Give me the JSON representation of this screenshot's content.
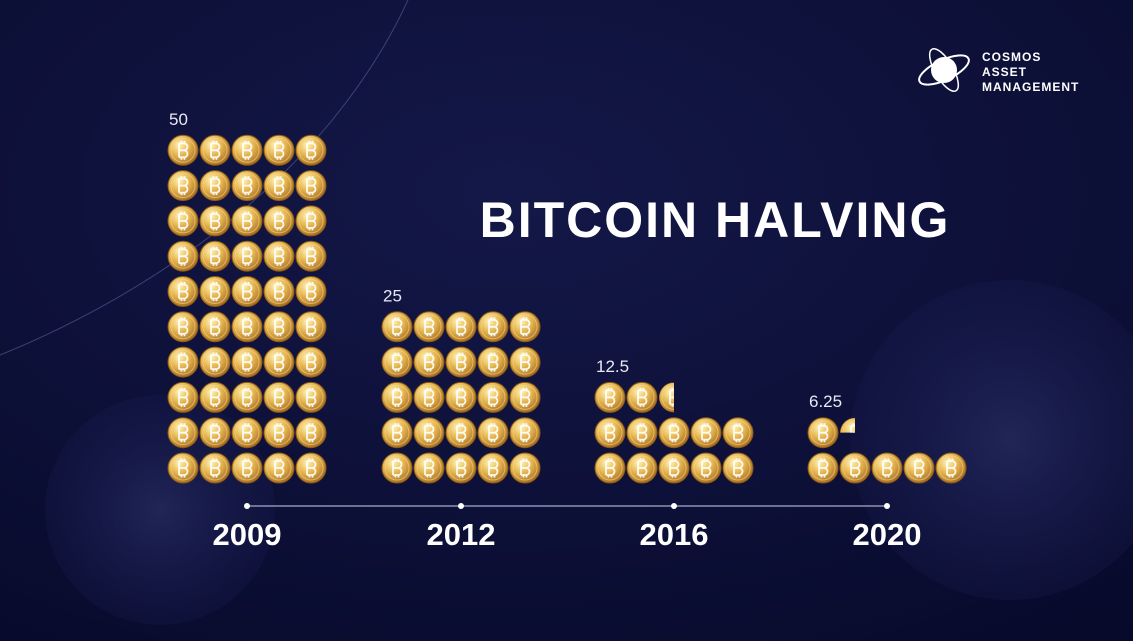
{
  "chart_data": {
    "type": "pictograph",
    "title": "BITCOIN HALVING",
    "categories": [
      "2009",
      "2012",
      "2016",
      "2020"
    ],
    "values": [
      50,
      25,
      12.5,
      6.25
    ]
  },
  "logo": {
    "lines": [
      "COSMOS",
      "ASSET",
      "MANAGEMENT"
    ]
  }
}
